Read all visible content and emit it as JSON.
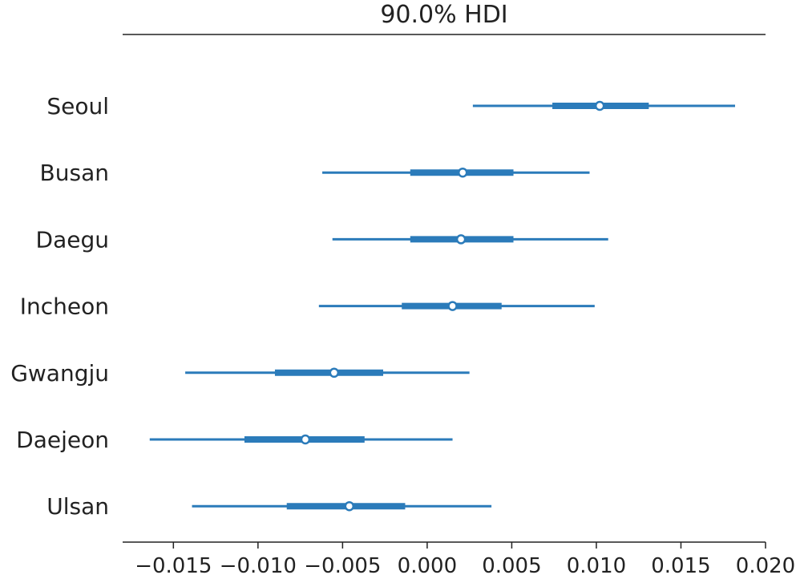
{
  "chart_data": {
    "type": "forest",
    "title": "90.0% HDI",
    "xlim": [
      -0.018,
      0.02
    ],
    "x_ticks": [
      "−0.015",
      "−0.010",
      "−0.005",
      "0.000",
      "0.005",
      "0.010",
      "0.015",
      "0.020"
    ],
    "x_tick_values": [
      -0.015,
      -0.01,
      -0.005,
      0.0,
      0.005,
      0.01,
      0.015,
      0.02
    ],
    "categories": [
      "Seoul",
      "Busan",
      "Daegu",
      "Incheon",
      "Gwangju",
      "Daejeon",
      "Ulsan"
    ],
    "series": [
      {
        "label": "Seoul",
        "hdi_low": 0.0027,
        "iqr_low": 0.0074,
        "median": 0.0102,
        "iqr_high": 0.0131,
        "hdi_high": 0.0182
      },
      {
        "label": "Busan",
        "hdi_low": -0.0062,
        "iqr_low": -0.001,
        "median": 0.0021,
        "iqr_high": 0.0051,
        "hdi_high": 0.0096
      },
      {
        "label": "Daegu",
        "hdi_low": -0.0056,
        "iqr_low": -0.001,
        "median": 0.002,
        "iqr_high": 0.0051,
        "hdi_high": 0.0107
      },
      {
        "label": "Incheon",
        "hdi_low": -0.0064,
        "iqr_low": -0.0015,
        "median": 0.0015,
        "iqr_high": 0.0044,
        "hdi_high": 0.0099
      },
      {
        "label": "Gwangju",
        "hdi_low": -0.0143,
        "iqr_low": -0.009,
        "median": -0.0055,
        "iqr_high": -0.0026,
        "hdi_high": 0.0025
      },
      {
        "label": "Daejeon",
        "hdi_low": -0.0164,
        "iqr_low": -0.0108,
        "median": -0.0072,
        "iqr_high": -0.0037,
        "hdi_high": 0.0015
      },
      {
        "label": "Ulsan",
        "hdi_low": -0.0139,
        "iqr_low": -0.0083,
        "median": -0.0046,
        "iqr_high": -0.0013,
        "hdi_high": 0.0038
      }
    ],
    "color": "#2b7bba",
    "grid": false
  }
}
